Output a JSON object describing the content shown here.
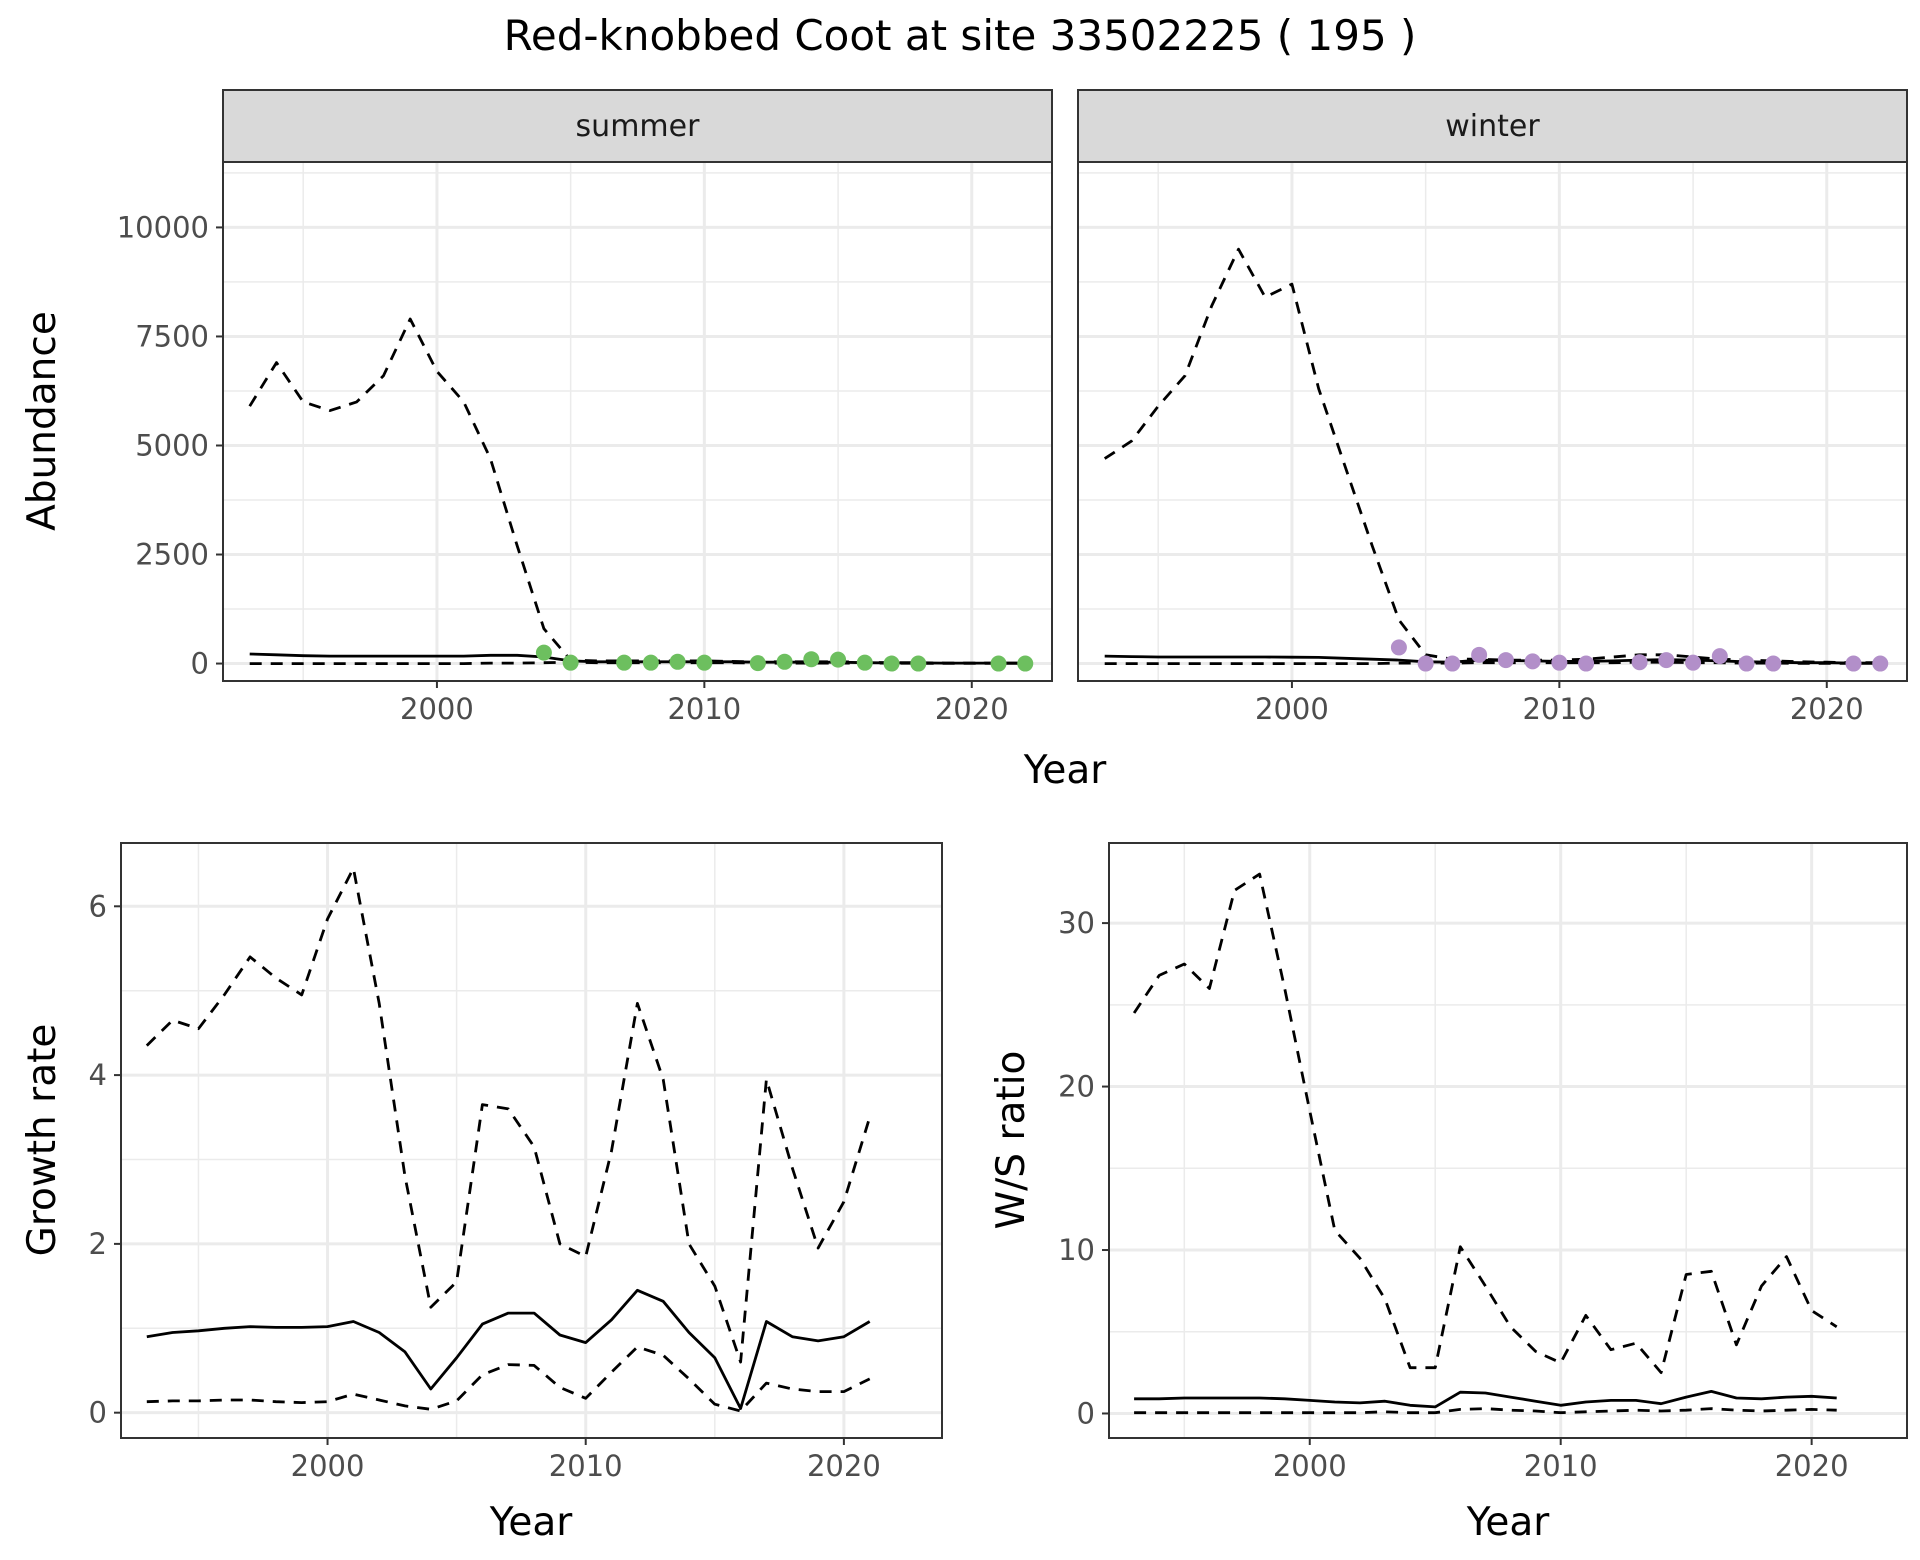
{
  "title": "Red-knobbed Coot at site 33502225 ( 195 )",
  "colors": {
    "summer_points": "#6dbf5f",
    "winter_points": "#b28fc9",
    "line": "#000000",
    "grid": "#ebebeb",
    "strip_fill": "#d9d9d9",
    "panel_border": "#333333"
  },
  "chart_data": [
    {
      "id": "abundance",
      "type": "line",
      "title": "",
      "facets": [
        "summer",
        "winter"
      ],
      "xlabel": "Year",
      "ylabel": "Abundance",
      "xlim": [
        1992,
        2023
      ],
      "ylim": [
        -400,
        11500
      ],
      "x_ticks": [
        2000,
        2010,
        2020
      ],
      "y_ticks": [
        0,
        2500,
        5000,
        7500,
        10000
      ],
      "grid": true,
      "legend": "none",
      "x": [
        1993,
        1994,
        1995,
        1996,
        1997,
        1998,
        1999,
        2000,
        2001,
        2002,
        2003,
        2004,
        2005,
        2006,
        2007,
        2008,
        2009,
        2010,
        2011,
        2012,
        2013,
        2014,
        2015,
        2016,
        2017,
        2018,
        2019,
        2020,
        2021,
        2022
      ],
      "panels": {
        "summer": {
          "upper": [
            5900,
            6900,
            6000,
            5800,
            6000,
            6600,
            7900,
            6700,
            6000,
            4700,
            2700,
            800,
            80,
            60,
            60,
            60,
            60,
            60,
            50,
            40,
            40,
            40,
            40,
            30,
            20,
            20,
            10,
            10,
            10,
            10
          ],
          "mean": [
            220,
            200,
            180,
            170,
            170,
            170,
            170,
            170,
            170,
            190,
            190,
            150,
            60,
            40,
            40,
            40,
            40,
            40,
            40,
            30,
            30,
            30,
            30,
            20,
            15,
            15,
            10,
            10,
            10,
            10
          ],
          "lower": [
            0,
            0,
            0,
            0,
            0,
            0,
            0,
            0,
            0,
            10,
            10,
            20,
            30,
            20,
            20,
            20,
            20,
            20,
            20,
            10,
            10,
            10,
            10,
            10,
            10,
            5,
            5,
            5,
            5,
            5
          ],
          "points": [
            [
              2004,
              250
            ],
            [
              2005,
              20
            ],
            [
              2007,
              20
            ],
            [
              2008,
              20
            ],
            [
              2009,
              40
            ],
            [
              2010,
              20
            ],
            [
              2012,
              10
            ],
            [
              2013,
              40
            ],
            [
              2014,
              100
            ],
            [
              2015,
              90
            ],
            [
              2016,
              20
            ],
            [
              2017,
              0
            ],
            [
              2018,
              0
            ],
            [
              2021,
              0
            ],
            [
              2022,
              0
            ]
          ]
        },
        "winter": {
          "upper": [
            4700,
            5100,
            5900,
            6600,
            8200,
            9500,
            8400,
            8700,
            6300,
            4500,
            2700,
            1000,
            200,
            100,
            100,
            80,
            80,
            80,
            100,
            150,
            200,
            200,
            150,
            100,
            80,
            60,
            40,
            30,
            20,
            20
          ],
          "mean": [
            170,
            160,
            150,
            150,
            150,
            150,
            150,
            145,
            140,
            120,
            100,
            80,
            40,
            30,
            80,
            70,
            60,
            50,
            50,
            60,
            80,
            90,
            80,
            60,
            40,
            30,
            20,
            20,
            10,
            10
          ],
          "lower": [
            0,
            0,
            0,
            0,
            0,
            0,
            0,
            0,
            0,
            0,
            0,
            10,
            10,
            10,
            20,
            20,
            20,
            20,
            20,
            20,
            30,
            30,
            20,
            20,
            10,
            10,
            5,
            5,
            5,
            5
          ],
          "points": [
            [
              2004,
              370
            ],
            [
              2005,
              0
            ],
            [
              2006,
              0
            ],
            [
              2007,
              200
            ],
            [
              2008,
              80
            ],
            [
              2009,
              50
            ],
            [
              2010,
              20
            ],
            [
              2011,
              0
            ],
            [
              2013,
              30
            ],
            [
              2014,
              80
            ],
            [
              2015,
              20
            ],
            [
              2016,
              170
            ],
            [
              2017,
              0
            ],
            [
              2018,
              0
            ],
            [
              2021,
              0
            ],
            [
              2022,
              0
            ]
          ]
        }
      }
    },
    {
      "id": "growth",
      "type": "line",
      "title": "",
      "xlabel": "Year",
      "ylabel": "Growth rate",
      "xlim": [
        1992,
        2023.8
      ],
      "ylim": [
        -0.3,
        6.75
      ],
      "x_ticks": [
        2000,
        2010,
        2020
      ],
      "y_ticks": [
        0,
        2,
        4,
        6
      ],
      "grid": true,
      "legend": "none",
      "x": [
        1993,
        1994,
        1995,
        1996,
        1997,
        1998,
        1999,
        2000,
        2001,
        2002,
        2003,
        2004,
        2005,
        2006,
        2007,
        2008,
        2009,
        2010,
        2011,
        2012,
        2013,
        2014,
        2015,
        2016,
        2017,
        2018,
        2019,
        2020,
        2021
      ],
      "upper": [
        4.35,
        4.65,
        4.55,
        4.95,
        5.4,
        5.15,
        4.95,
        5.85,
        6.45,
        4.85,
        2.8,
        1.25,
        1.55,
        3.65,
        3.6,
        3.15,
        2.0,
        1.85,
        3.1,
        4.85,
        3.95,
        2.0,
        1.5,
        0.6,
        3.95,
        2.9,
        1.95,
        2.5,
        3.5
      ],
      "mean": [
        0.9,
        0.95,
        0.97,
        1.0,
        1.02,
        1.01,
        1.01,
        1.02,
        1.08,
        0.95,
        0.72,
        0.28,
        0.65,
        1.05,
        1.18,
        1.18,
        0.92,
        0.83,
        1.1,
        1.45,
        1.32,
        0.95,
        0.65,
        0.05,
        1.08,
        0.9,
        0.85,
        0.9,
        1.08
      ],
      "lower": [
        0.13,
        0.14,
        0.14,
        0.15,
        0.15,
        0.13,
        0.12,
        0.13,
        0.22,
        0.15,
        0.08,
        0.04,
        0.14,
        0.45,
        0.57,
        0.56,
        0.3,
        0.17,
        0.48,
        0.78,
        0.68,
        0.4,
        0.1,
        0.02,
        0.35,
        0.28,
        0.25,
        0.25,
        0.4
      ]
    },
    {
      "id": "ratio",
      "type": "line",
      "title": "",
      "xlabel": "Year",
      "ylabel": "W/S ratio",
      "xlim": [
        1992,
        2023.8
      ],
      "ylim": [
        -1.5,
        34.9
      ],
      "x_ticks": [
        2000,
        2010,
        2020
      ],
      "y_ticks": [
        0,
        10,
        20,
        30
      ],
      "grid": true,
      "legend": "none",
      "x": [
        1993,
        1994,
        1995,
        1996,
        1997,
        1998,
        1999,
        2000,
        2001,
        2002,
        2003,
        2004,
        2005,
        2006,
        2007,
        2008,
        2009,
        2010,
        2011,
        2012,
        2013,
        2014,
        2015,
        2016,
        2017,
        2018,
        2019,
        2020,
        2021
      ],
      "upper": [
        24.5,
        26.8,
        27.5,
        26.0,
        32.0,
        33.0,
        26.0,
        18.5,
        11.2,
        9.5,
        7.0,
        2.8,
        2.8,
        10.2,
        7.8,
        5.3,
        3.8,
        3.1,
        6.0,
        3.9,
        4.3,
        2.5,
        8.5,
        8.7,
        4.2,
        7.8,
        9.6,
        6.3,
        5.3
      ],
      "mean": [
        0.9,
        0.9,
        0.95,
        0.95,
        0.95,
        0.95,
        0.9,
        0.8,
        0.7,
        0.65,
        0.75,
        0.5,
        0.4,
        1.3,
        1.25,
        1.0,
        0.75,
        0.5,
        0.7,
        0.8,
        0.8,
        0.6,
        1.0,
        1.35,
        0.95,
        0.9,
        1.0,
        1.05,
        0.95
      ],
      "lower": [
        0.05,
        0.05,
        0.05,
        0.05,
        0.05,
        0.05,
        0.05,
        0.05,
        0.05,
        0.05,
        0.1,
        0.05,
        0.05,
        0.25,
        0.3,
        0.2,
        0.15,
        0.05,
        0.1,
        0.15,
        0.2,
        0.15,
        0.2,
        0.3,
        0.2,
        0.15,
        0.2,
        0.25,
        0.2
      ]
    }
  ]
}
